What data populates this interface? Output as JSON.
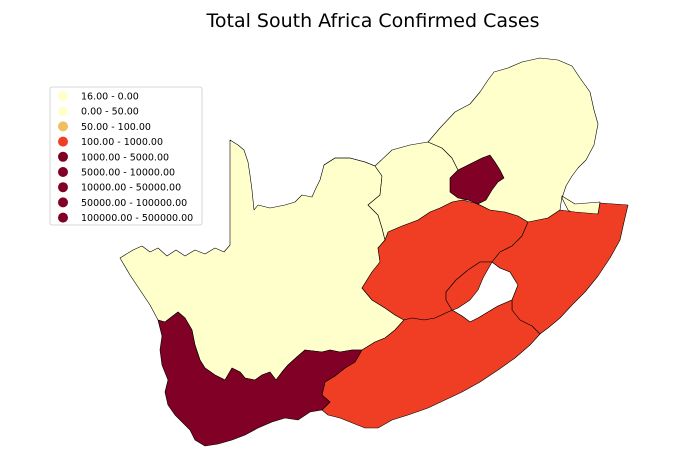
{
  "chart_data": {
    "type": "choropleth",
    "title": "Total South Africa Confirmed Cases",
    "legend": {
      "placement": "upper-left",
      "entries": [
        {
          "label": "16.00 - 0.00",
          "color": "#ffffcc"
        },
        {
          "label": "0.00 - 50.00",
          "color": "#ffffcc"
        },
        {
          "label": "50.00 - 100.00",
          "color": "#f0c060"
        },
        {
          "label": "100.00 - 1000.00",
          "color": "#f03e25"
        },
        {
          "label": "1000.00 - 5000.00",
          "color": "#800026"
        },
        {
          "label": "5000.00 - 10000.00",
          "color": "#800026"
        },
        {
          "label": "10000.00 - 50000.00",
          "color": "#800026"
        },
        {
          "label": "50000.00 - 100000.00",
          "color": "#800026"
        },
        {
          "label": "100000.00 - 500000.00",
          "color": "#800026"
        }
      ]
    },
    "colors": {
      "low": "#ffffcc",
      "mid": "#f03e25",
      "high": "#800026",
      "lesotho": "#ffffff"
    }
  }
}
